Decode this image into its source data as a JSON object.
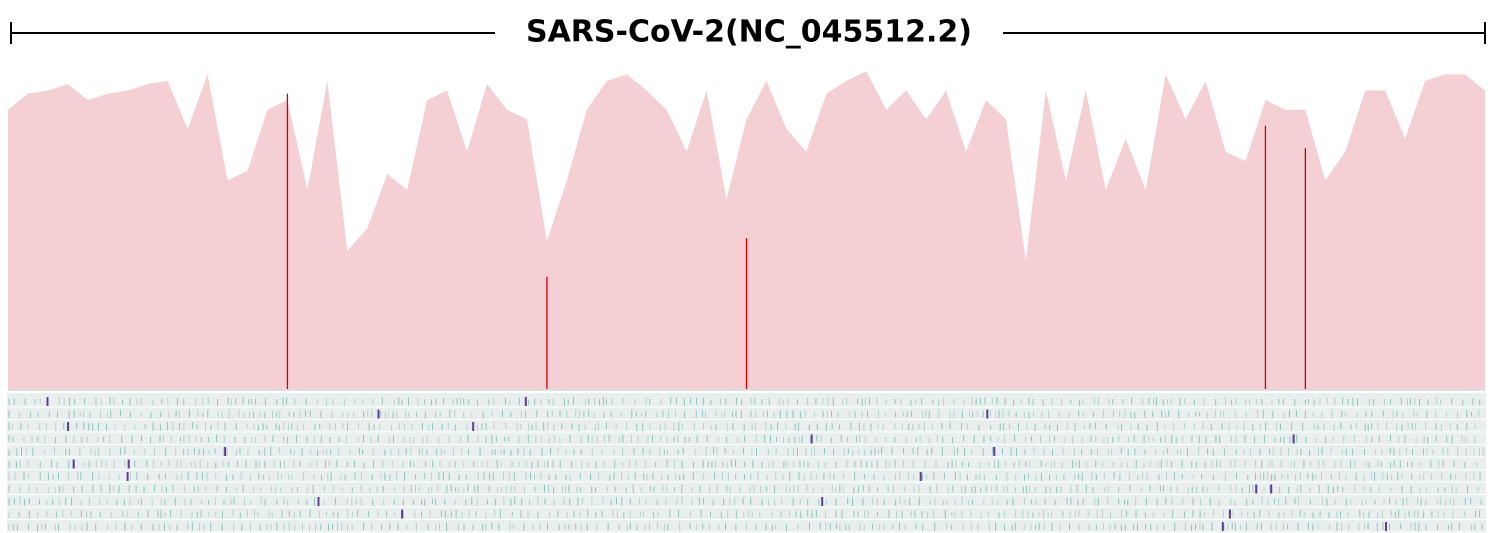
{
  "chart_data": {
    "type": "area",
    "title": "SARS-CoV-2(NC_045512.2)",
    "ylim": [
      0,
      100
    ],
    "series": [
      {
        "color": "#f4d0d4",
        "values": [
          87,
          92,
          93,
          95,
          90,
          92,
          93,
          95,
          96,
          81,
          98,
          65,
          68,
          87,
          90,
          62,
          96,
          43,
          50,
          67,
          62,
          90,
          93,
          74,
          95,
          87,
          84,
          46,
          65,
          87,
          96,
          98,
          93,
          87,
          74,
          93,
          59,
          84,
          96,
          81,
          74,
          92,
          96,
          99,
          87,
          93,
          84,
          93,
          74,
          90,
          84,
          40,
          93,
          65,
          93,
          62,
          78,
          62,
          98,
          84,
          96,
          74,
          71,
          90,
          87,
          87,
          65,
          74,
          93,
          93,
          78,
          96,
          98,
          98,
          93
        ]
      },
      {
        "color": "#cc0000",
        "values": [
          null,
          null,
          null,
          null,
          null,
          null,
          null,
          null,
          null,
          null,
          null,
          null,
          null,
          null,
          92,
          null,
          null,
          null,
          null,
          null,
          null,
          null,
          null,
          null,
          null,
          null,
          null,
          35,
          null,
          null,
          null,
          null,
          null,
          null,
          null,
          null,
          null,
          47,
          null,
          null,
          null,
          null,
          null,
          null,
          null,
          null,
          null,
          null,
          null,
          null,
          null,
          null,
          null,
          null,
          null,
          null,
          null,
          null,
          null,
          null,
          null,
          null,
          null,
          82,
          null,
          75,
          null,
          null,
          null,
          null,
          null,
          null,
          null,
          null,
          null
        ]
      }
    ]
  }
}
